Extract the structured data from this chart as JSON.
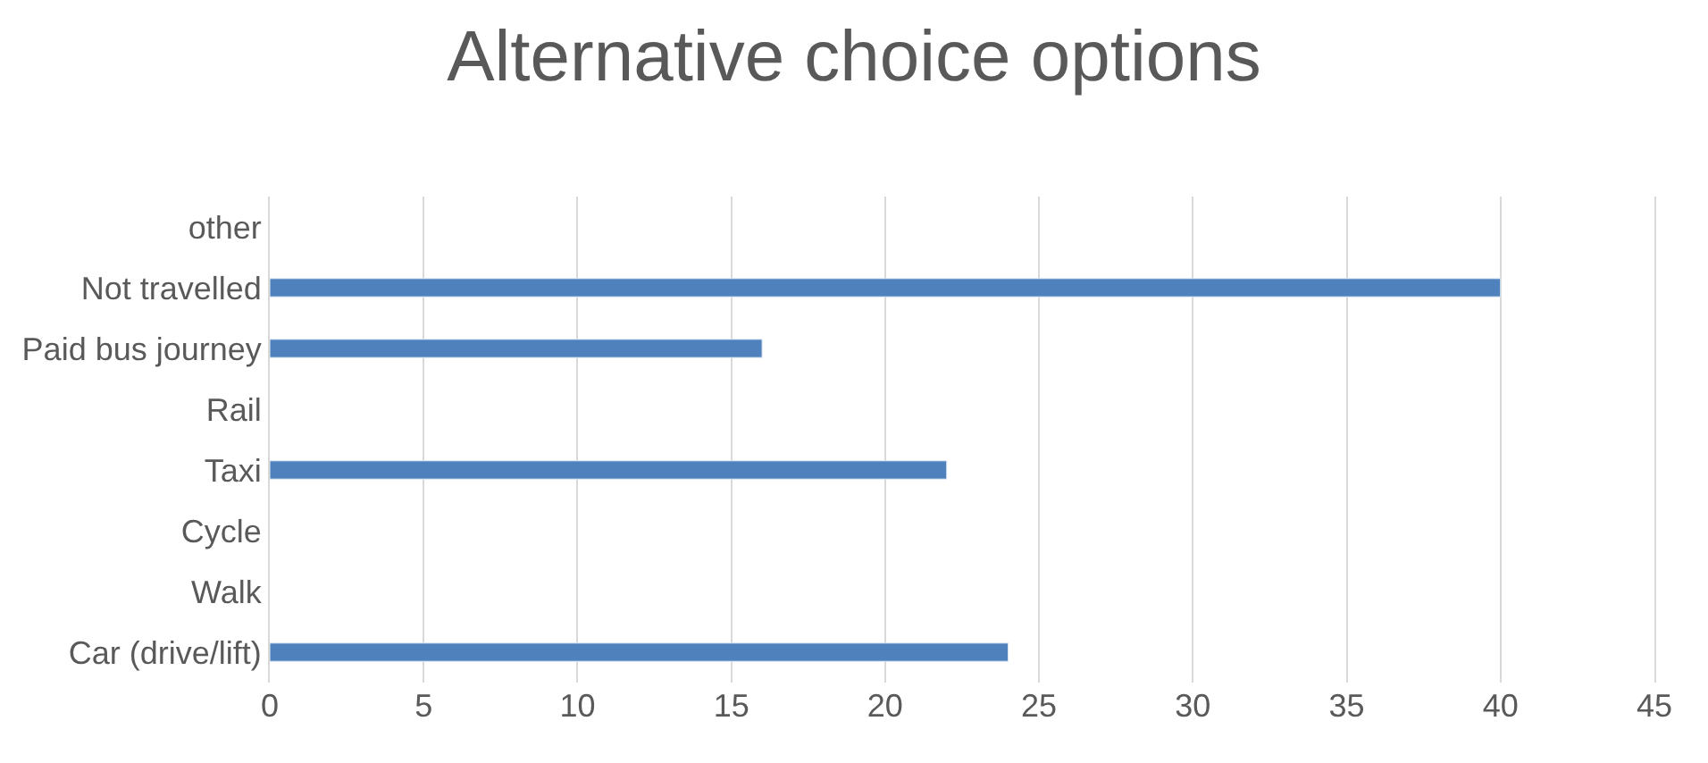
{
  "chart_data": {
    "type": "bar",
    "orientation": "horizontal",
    "title": "Alternative choice options",
    "categories": [
      "other",
      "Not travelled",
      "Paid bus journey",
      "Rail",
      "Taxi",
      "Cycle",
      "Walk",
      "Car (drive/lift)"
    ],
    "values": [
      null,
      40,
      16,
      null,
      22,
      null,
      null,
      24
    ],
    "color": "#4f81bd",
    "xlim": [
      0,
      45
    ],
    "xticks": [
      0,
      5,
      10,
      15,
      20,
      25,
      30,
      35,
      40,
      45
    ],
    "grid": "x"
  }
}
